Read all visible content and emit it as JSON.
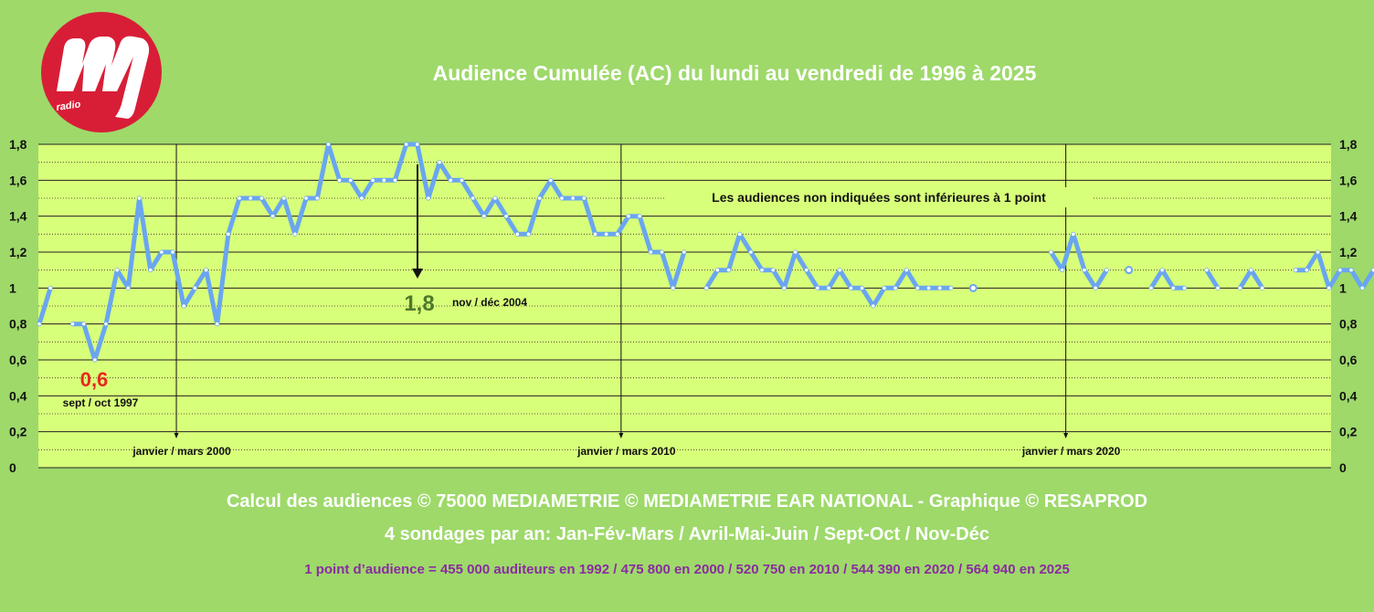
{
  "logo": {
    "text": "radio",
    "color": "#d81e37"
  },
  "chart_data": {
    "type": "line",
    "title": "Audience Cumulée (AC) du lundi au vendredi de 1996 à 2025",
    "note": "Les audiences non indiquées sont inférieures à 1 point",
    "ylim": [
      0,
      1.8
    ],
    "yticks": [
      "0",
      "0,2",
      "0,4",
      "0,6",
      "0,8",
      "1",
      "1,2",
      "1,4",
      "1,6",
      "1,8"
    ],
    "grid": true,
    "x_start": "janvier / mars 1997",
    "x_step": "trimestre",
    "line_color": "#6aa6f0",
    "plot_color": "#d8ff7a",
    "values": [
      0.8,
      1.0,
      null,
      0.8,
      0.8,
      0.6,
      0.8,
      1.1,
      1.0,
      1.5,
      1.1,
      1.2,
      1.2,
      0.9,
      1.0,
      1.1,
      0.8,
      1.3,
      1.5,
      1.5,
      1.5,
      1.4,
      1.5,
      1.3,
      1.5,
      1.5,
      1.8,
      1.6,
      1.6,
      1.5,
      1.6,
      1.6,
      1.6,
      1.8,
      1.8,
      1.5,
      1.7,
      1.6,
      1.6,
      1.5,
      1.4,
      1.5,
      1.4,
      1.3,
      1.3,
      1.5,
      1.6,
      1.5,
      1.5,
      1.5,
      1.3,
      1.3,
      1.3,
      1.4,
      1.4,
      1.2,
      1.2,
      1.0,
      1.2,
      null,
      1.0,
      1.1,
      1.1,
      1.3,
      1.2,
      1.1,
      1.1,
      1.0,
      1.2,
      1.1,
      1.0,
      1.0,
      1.1,
      1.0,
      1.0,
      0.9,
      1.0,
      1.0,
      1.1,
      1.0,
      1.0,
      1.0,
      1.0,
      null,
      1.0,
      null,
      null,
      null,
      null,
      null,
      null,
      1.2,
      1.1,
      1.3,
      1.1,
      1.0,
      1.1,
      null,
      1.1,
      null,
      1.0,
      1.1,
      1.0,
      1.0,
      null,
      1.1,
      1.0,
      null,
      1.0,
      1.1,
      1.0,
      null,
      null,
      1.1,
      1.1,
      1.2,
      1.0,
      1.1,
      1.1,
      1.0,
      1.1
    ],
    "markers": [
      {
        "label": "janvier / mars 2000",
        "index": 12
      },
      {
        "label": "janvier / mars 2010",
        "index": 52
      },
      {
        "label": "janvier / mars 2020",
        "index": 92
      }
    ],
    "annotations": {
      "min": {
        "value": "0,6",
        "period": "sept / oct 1997",
        "index": 5,
        "color": "#e8281e"
      },
      "max": {
        "value": "1,8",
        "period": "nov / déc 2004",
        "index": 34,
        "color": "#4f7a2a"
      }
    }
  },
  "footer": {
    "line1": "Calcul des audiences © 75000 MEDIAMETRIE © MEDIAMETRIE EAR NATIONAL - Graphique © RESAPROD",
    "line2": "4 sondages par an: Jan-Fév-Mars / Avril-Mai-Juin / Sept-Oct / Nov-Déc",
    "line3": "1 point d’audience = 455 000 auditeurs en 1992   /   475 800 en 2000   /   520 750 en 2010   /   544 390 en 2020   /   564 940 en 2025"
  }
}
